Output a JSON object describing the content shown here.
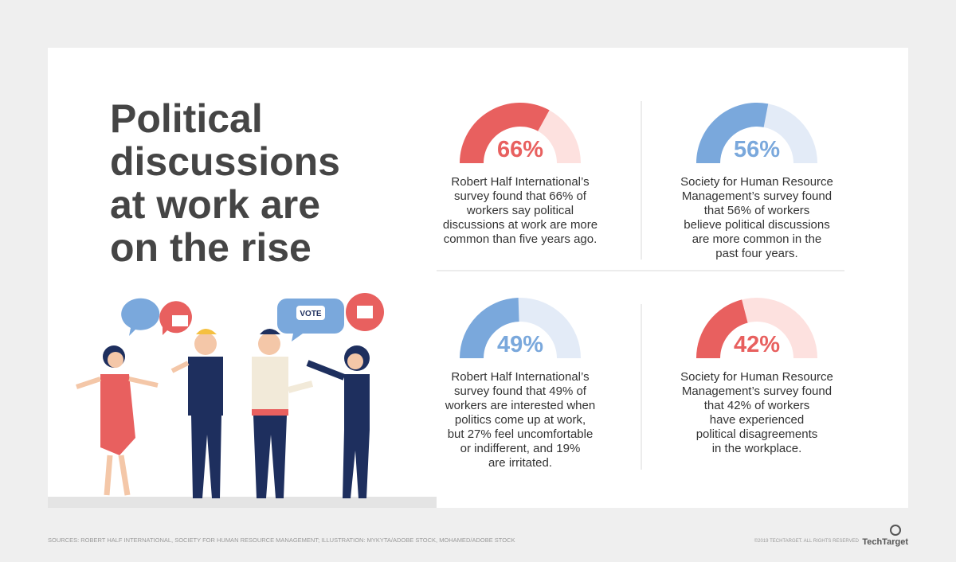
{
  "title_lines": [
    "Political",
    "discussions",
    "at work are",
    "on the rise"
  ],
  "stats": [
    {
      "value": 66,
      "value_label": "66%",
      "color": "#e8605f",
      "track_color": "#fde1df",
      "lines": [
        "Robert Half International’s",
        "survey found that 66% of",
        "workers say political",
        "discussions at work are more",
        "common than five years ago."
      ]
    },
    {
      "value": 56,
      "value_label": "56%",
      "color": "#7aa8dc",
      "track_color": "#e3ebf7",
      "lines": [
        "Society for Human Resource",
        "Management’s survey found",
        "that 56% of workers",
        "believe political discussions",
        "are more common in the",
        "past four years."
      ]
    },
    {
      "value": 49,
      "value_label": "49%",
      "color": "#7aa8dc",
      "track_color": "#e3ebf7",
      "lines": [
        "Robert Half International’s",
        "survey found that 49% of",
        "workers are interested when",
        "politics come up at work,",
        "but 27% feel uncomfortable",
        "or indifferent, and 19%",
        "are irritated."
      ]
    },
    {
      "value": 42,
      "value_label": "42%",
      "color": "#e8605f",
      "track_color": "#fde1df",
      "lines": [
        "Society for Human Resource",
        "Management’s survey found",
        "that 42% of workers",
        "have experienced",
        "political disagreements",
        "in the workplace."
      ]
    }
  ],
  "gauge_max": 100,
  "footer": {
    "sources": "SOURCES: ROBERT HALF INTERNATIONAL, SOCIETY FOR HUMAN RESOURCE MANAGEMENT; ILLUSTRATION: MYKYTA/ADOBE STOCK, MOHAMED/ADOBE STOCK",
    "copyright": "©2019 TECHTARGET. ALL RIGHTS RESERVED",
    "logo": "TechTarget"
  },
  "bubbles": [
    "VOTE"
  ]
}
